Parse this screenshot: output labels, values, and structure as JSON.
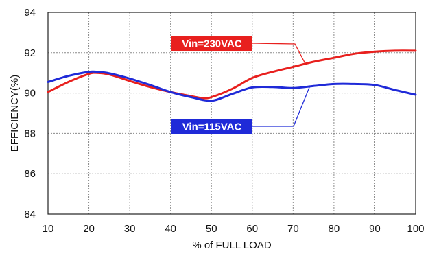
{
  "chart_data": {
    "type": "line",
    "title": "",
    "xlabel": "% of FULL LOAD",
    "ylabel": "EFFICIENCY(%)",
    "xlim": [
      10,
      100
    ],
    "ylim": [
      84,
      94
    ],
    "x_ticks": [
      10,
      20,
      30,
      40,
      50,
      60,
      70,
      80,
      90,
      100
    ],
    "y_ticks": [
      84,
      86,
      88,
      90,
      92,
      94
    ],
    "grid": true,
    "legend": "none",
    "series": [
      {
        "name": "Vin=230VAC",
        "color": "#e8201e",
        "label_bg": "#e8201e",
        "x": [
          10,
          15,
          20,
          22,
          25,
          30,
          35,
          40,
          45,
          48,
          50,
          55,
          60,
          65,
          70,
          75,
          80,
          85,
          90,
          95,
          100
        ],
        "values": [
          90.05,
          90.55,
          90.95,
          91.0,
          90.92,
          90.6,
          90.3,
          90.05,
          89.85,
          89.75,
          89.8,
          90.2,
          90.75,
          91.05,
          91.3,
          91.55,
          91.75,
          91.95,
          92.05,
          92.1,
          92.1
        ]
      },
      {
        "name": "Vin=115VAC",
        "color": "#1f2ad8",
        "label_bg": "#1f2ad8",
        "x": [
          10,
          15,
          20,
          22,
          25,
          30,
          35,
          40,
          45,
          50,
          55,
          60,
          65,
          70,
          75,
          80,
          85,
          90,
          95,
          100
        ],
        "values": [
          90.55,
          90.85,
          91.05,
          91.05,
          90.98,
          90.72,
          90.4,
          90.05,
          89.8,
          89.62,
          89.95,
          90.28,
          90.3,
          90.25,
          90.35,
          90.45,
          90.45,
          90.4,
          90.15,
          89.92
        ]
      }
    ],
    "annotations": [
      {
        "text": "Vin=230VAC",
        "series": "Vin=230VAC",
        "point": [
          73,
          91.45
        ],
        "anchor": "upper-middle"
      },
      {
        "text": "Vin=115VAC",
        "series": "Vin=115VAC",
        "point": [
          74,
          90.3
        ],
        "anchor": "lower-middle"
      }
    ]
  }
}
